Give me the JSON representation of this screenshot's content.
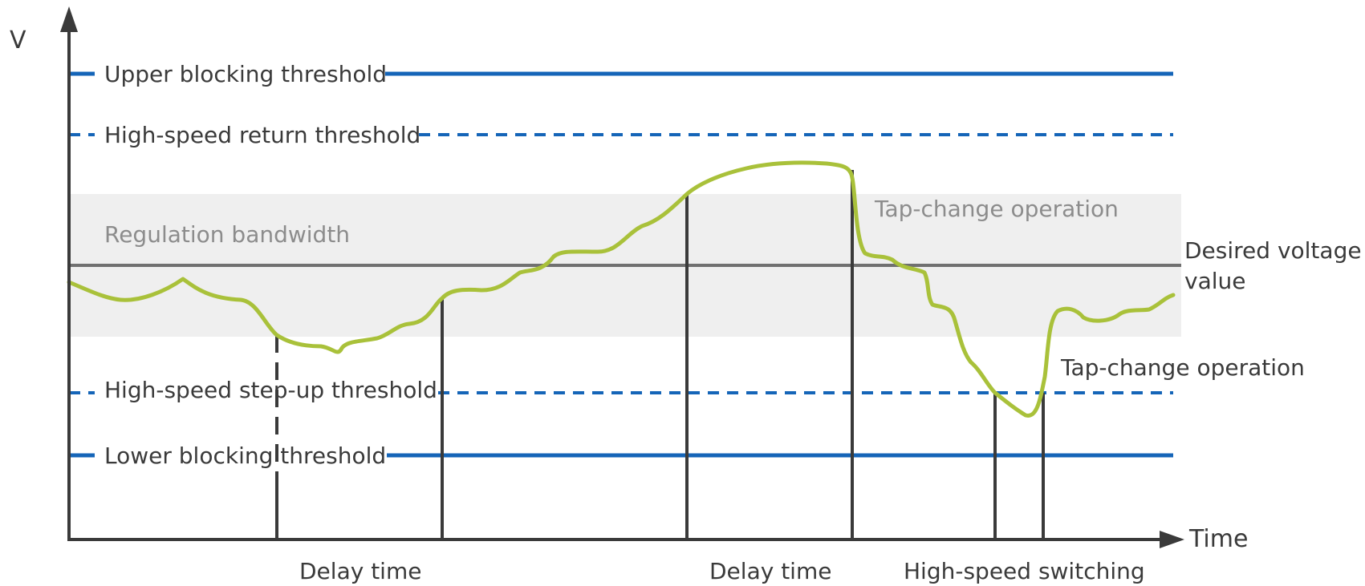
{
  "axes": {
    "y_label": "V",
    "x_label": "Time"
  },
  "thresholds": {
    "upper_blocking": "Upper blocking threshold",
    "high_speed_return": "High-speed return threshold",
    "high_speed_step_up": "High-speed step-up threshold",
    "lower_blocking": "Lower blocking threshold"
  },
  "band": {
    "label": "Regulation bandwidth",
    "desired_line1": "Desired voltage",
    "desired_line2": "value"
  },
  "events": {
    "tap_change_1": "Tap-change operation",
    "tap_change_2": "Tap-change operation"
  },
  "intervals": {
    "delay_1": "Delay time",
    "delay_2": "Delay time",
    "high_speed": "High-speed switching"
  },
  "colors": {
    "threshold_blue": "#1565b8",
    "voltage_curve": "#a9c13a",
    "band_fill": "#efefef",
    "axis": "#3a3a3a",
    "desired_line": "#707070"
  }
}
